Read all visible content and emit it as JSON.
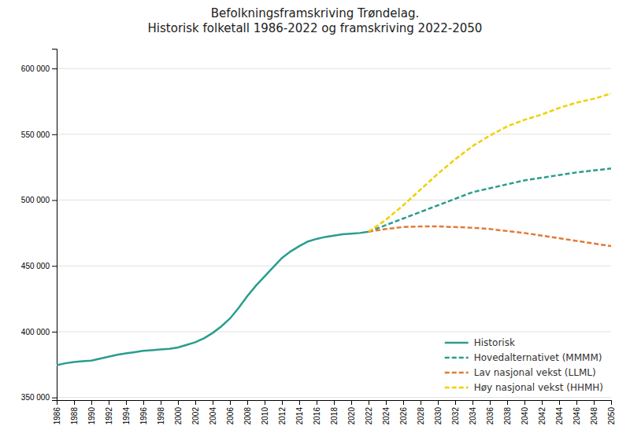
{
  "chart_data": {
    "type": "line",
    "title": "Befolkningsframskriving Trøndelag.\nHistorisk folketall 1986-2022 og framskriving 2022-2050",
    "series": [
      {
        "name": "Historisk",
        "color": "#2a9d8f",
        "line_style": "solid",
        "x": [
          1986,
          1987,
          1988,
          1989,
          1990,
          1991,
          1992,
          1993,
          1994,
          1995,
          1996,
          1997,
          1998,
          1999,
          2000,
          2001,
          2002,
          2003,
          2004,
          2005,
          2006,
          2007,
          2008,
          2009,
          2010,
          2011,
          2012,
          2013,
          2014,
          2015,
          2016,
          2017,
          2018,
          2019,
          2020,
          2021,
          2022
        ],
        "values": [
          374500,
          376000,
          377000,
          377500,
          378000,
          379500,
          381000,
          382500,
          383500,
          384500,
          385500,
          386000,
          386500,
          387000,
          388000,
          390000,
          392000,
          395000,
          399000,
          404000,
          410000,
          418000,
          427000,
          435000,
          442000,
          449000,
          456000,
          461000,
          465000,
          468500,
          470500,
          472000,
          473000,
          474000,
          474500,
          475000,
          476000
        ]
      },
      {
        "name": "Hovedalternativet (MMMM)",
        "color": "#2a9d8f",
        "line_style": "dashed",
        "x": [
          2022,
          2024,
          2026,
          2028,
          2030,
          2032,
          2034,
          2036,
          2038,
          2040,
          2042,
          2044,
          2046,
          2048,
          2050
        ],
        "values": [
          476000,
          481000,
          486000,
          491000,
          496000,
          501000,
          506000,
          509000,
          512000,
          515000,
          517000,
          519000,
          521000,
          522500,
          524000
        ]
      },
      {
        "name": "Lav nasjonal vekst (LLML)",
        "color": "#e07b39",
        "line_style": "dashed",
        "x": [
          2022,
          2024,
          2026,
          2028,
          2030,
          2032,
          2034,
          2036,
          2038,
          2040,
          2042,
          2044,
          2046,
          2048,
          2050
        ],
        "values": [
          476000,
          478000,
          479500,
          480000,
          480000,
          479500,
          479000,
          478000,
          476500,
          475000,
          473000,
          471000,
          469000,
          467000,
          465000
        ]
      },
      {
        "name": "Høy nasjonal vekst (HHMH)",
        "color": "#f0d000",
        "line_style": "dashed",
        "x": [
          2022,
          2024,
          2026,
          2028,
          2030,
          2032,
          2034,
          2036,
          2038,
          2040,
          2042,
          2044,
          2046,
          2048,
          2050
        ],
        "values": [
          476000,
          485000,
          496000,
          508000,
          520000,
          531000,
          541000,
          549000,
          556000,
          561000,
          565000,
          570000,
          574000,
          577000,
          581000
        ]
      }
    ],
    "xlim": [
      1986,
      2050
    ],
    "xticks": [
      1986,
      1988,
      1990,
      1992,
      1994,
      1996,
      1998,
      2000,
      2002,
      2004,
      2006,
      2008,
      2010,
      2012,
      2014,
      2016,
      2018,
      2020,
      2022,
      2024,
      2026,
      2028,
      2030,
      2032,
      2034,
      2036,
      2038,
      2040,
      2042,
      2044,
      2046,
      2048,
      2050
    ],
    "ylim": [
      348000,
      615000
    ],
    "yticks": [
      {
        "value": 350000,
        "label": "350 000"
      },
      {
        "value": 400000,
        "label": "400 000"
      },
      {
        "value": 450000,
        "label": "450 000"
      },
      {
        "value": 500000,
        "label": "500 000"
      },
      {
        "value": 550000,
        "label": "550 000"
      },
      {
        "value": 600000,
        "label": "600 000"
      }
    ],
    "grid": "y",
    "legend": "bottom-right"
  }
}
